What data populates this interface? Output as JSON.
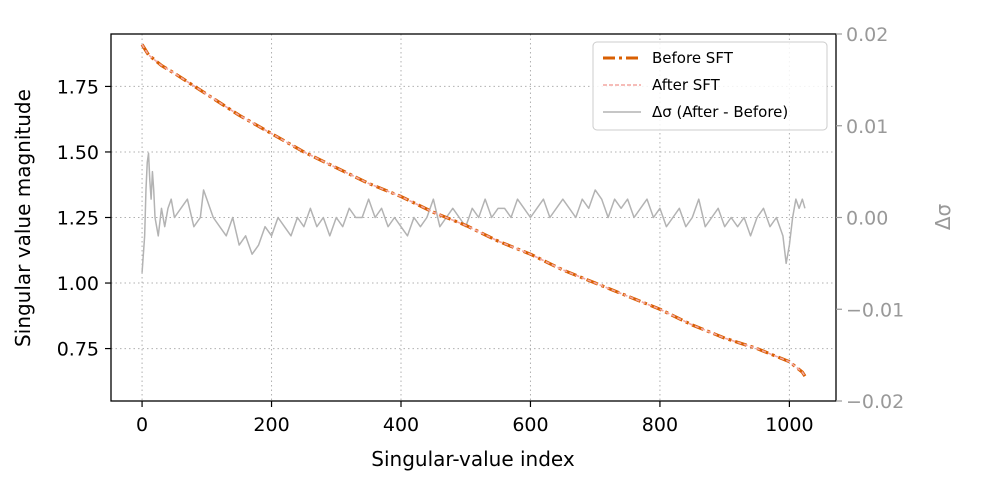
{
  "chart_data": {
    "type": "line",
    "title": "",
    "xlabel": "Singular-value index",
    "ylabel": "Singular value magnitude",
    "y2label": "Δσ",
    "xlim": [
      -48,
      1072
    ],
    "ylim": [
      0.55,
      1.95
    ],
    "y2lim": [
      -0.02,
      0.02
    ],
    "x_ticks": [
      0,
      200,
      400,
      600,
      800,
      1000
    ],
    "x_tick_labels": [
      "0",
      "200",
      "400",
      "600",
      "800",
      "1000"
    ],
    "y_ticks": [
      0.75,
      1.0,
      1.25,
      1.5,
      1.75
    ],
    "y_tick_labels": [
      "0.75",
      "1.00",
      "1.25",
      "1.50",
      "1.75"
    ],
    "y2_ticks": [
      -0.02,
      -0.01,
      0.0,
      0.01,
      0.02
    ],
    "y2_tick_labels": [
      "−0.02",
      "−0.01",
      "0.00",
      "0.01",
      "0.02"
    ],
    "grid": true,
    "legend_position": "top-right",
    "colors": {
      "before": "#d95f02",
      "after": "#f4a6a0",
      "delta": "#b3b3b3",
      "y2_axis": "#999999"
    },
    "series": [
      {
        "name": "Before SFT",
        "axis": "left",
        "style": "dashdot",
        "x": [
          0,
          5,
          10,
          20,
          30,
          50,
          75,
          100,
          150,
          200,
          250,
          300,
          350,
          400,
          450,
          500,
          550,
          600,
          650,
          700,
          750,
          800,
          850,
          900,
          950,
          980,
          1000,
          1010,
          1020,
          1024
        ],
        "values": [
          1.91,
          1.89,
          1.87,
          1.85,
          1.83,
          1.8,
          1.76,
          1.72,
          1.64,
          1.57,
          1.5,
          1.44,
          1.38,
          1.33,
          1.27,
          1.22,
          1.16,
          1.11,
          1.05,
          1.0,
          0.95,
          0.9,
          0.84,
          0.79,
          0.75,
          0.72,
          0.7,
          0.68,
          0.66,
          0.645
        ]
      },
      {
        "name": "After SFT",
        "axis": "left",
        "style": "dashed",
        "x": [
          0,
          5,
          10,
          20,
          30,
          50,
          75,
          100,
          150,
          200,
          250,
          300,
          350,
          400,
          450,
          500,
          550,
          600,
          650,
          700,
          750,
          800,
          850,
          900,
          950,
          980,
          1000,
          1010,
          1020,
          1024
        ],
        "values": [
          1.91,
          1.89,
          1.87,
          1.85,
          1.83,
          1.8,
          1.76,
          1.72,
          1.64,
          1.57,
          1.5,
          1.44,
          1.38,
          1.33,
          1.27,
          1.22,
          1.16,
          1.11,
          1.05,
          1.0,
          0.95,
          0.9,
          0.84,
          0.79,
          0.75,
          0.72,
          0.7,
          0.68,
          0.66,
          0.645
        ]
      },
      {
        "name": "Δσ (After - Before)",
        "axis": "right",
        "style": "solid",
        "x": [
          0,
          2,
          4,
          6,
          8,
          10,
          12,
          14,
          16,
          18,
          20,
          25,
          30,
          35,
          40,
          45,
          50,
          60,
          70,
          80,
          90,
          95,
          100,
          105,
          110,
          120,
          130,
          140,
          150,
          160,
          170,
          180,
          190,
          200,
          210,
          220,
          230,
          240,
          250,
          260,
          270,
          280,
          290,
          300,
          310,
          320,
          330,
          340,
          350,
          360,
          370,
          380,
          390,
          400,
          410,
          420,
          430,
          440,
          450,
          460,
          470,
          480,
          490,
          500,
          510,
          520,
          530,
          540,
          550,
          560,
          570,
          580,
          590,
          600,
          610,
          620,
          630,
          640,
          650,
          660,
          670,
          680,
          690,
          700,
          710,
          720,
          730,
          740,
          750,
          760,
          770,
          780,
          790,
          800,
          810,
          820,
          830,
          840,
          850,
          860,
          870,
          880,
          890,
          900,
          910,
          920,
          930,
          940,
          950,
          960,
          970,
          980,
          990,
          995,
          1000,
          1005,
          1010,
          1015,
          1020,
          1024
        ],
        "values": [
          -0.006,
          -0.004,
          -0.002,
          0.003,
          0.006,
          0.007,
          0.004,
          0.002,
          0.005,
          0.003,
          0.0,
          -0.002,
          0.001,
          -0.001,
          0.001,
          0.002,
          0.0,
          0.001,
          0.002,
          -0.001,
          0.0,
          0.003,
          0.002,
          0.001,
          0.0,
          -0.001,
          -0.002,
          0.0,
          -0.003,
          -0.002,
          -0.004,
          -0.003,
          -0.001,
          -0.002,
          0.0,
          -0.001,
          -0.002,
          0.0,
          -0.001,
          0.001,
          -0.001,
          0.0,
          -0.002,
          0.0,
          -0.001,
          0.001,
          0.0,
          0.0,
          0.002,
          0.0,
          0.001,
          -0.001,
          0.0,
          -0.001,
          -0.002,
          0.0,
          -0.001,
          0.0,
          0.002,
          -0.001,
          0.0,
          0.001,
          0.0,
          -0.001,
          0.001,
          0.0,
          0.002,
          0.0,
          0.001,
          0.001,
          0.0,
          0.002,
          0.001,
          0.0,
          0.001,
          0.002,
          0.0,
          0.001,
          0.002,
          0.001,
          0.0,
          0.002,
          0.001,
          0.003,
          0.002,
          0.0,
          0.002,
          0.001,
          0.002,
          0.0,
          0.001,
          0.002,
          0.0,
          0.001,
          -0.001,
          0.0,
          0.001,
          -0.001,
          0.0,
          0.002,
          -0.001,
          0.0,
          0.001,
          -0.001,
          0.0,
          -0.001,
          0.0,
          -0.002,
          0.0,
          0.001,
          -0.001,
          0.0,
          -0.002,
          -0.005,
          -0.003,
          0.0,
          0.002,
          0.001,
          0.002,
          0.001
        ]
      }
    ]
  }
}
